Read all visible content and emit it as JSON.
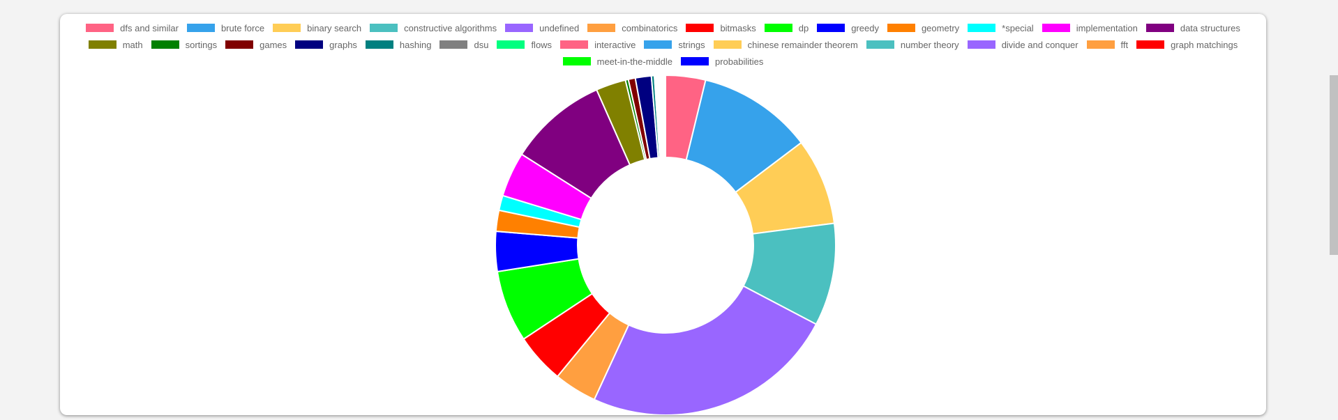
{
  "chart_data": {
    "type": "doughnut",
    "title": "",
    "legend_position": "top",
    "categories": [
      "dfs and similar",
      "brute force",
      "binary search",
      "constructive algorithms",
      "undefined",
      "combinatorics",
      "bitmasks",
      "dp",
      "greedy",
      "geometry",
      "*special",
      "implementation",
      "data structures",
      "math",
      "sortings",
      "games",
      "graphs",
      "hashing",
      "dsu",
      "flows",
      "interactive",
      "strings",
      "chinese remainder theorem",
      "number theory",
      "divide and conquer",
      "fft",
      "graph matchings",
      "meet-in-the-middle",
      "probabilities"
    ],
    "values": [
      4.0,
      11.5,
      8.7,
      10.3,
      25.5,
      4.3,
      5.0,
      7.2,
      4.0,
      2.1,
      1.5,
      4.5,
      9.9,
      3.0,
      0.3,
      0.7,
      1.6,
      0.3,
      0.1,
      0.1,
      0.1,
      0.1,
      0.1,
      0.1,
      0.1,
      0.1,
      0.1,
      0.1,
      0.1
    ],
    "colors": [
      "#ff6384",
      "#36a2eb",
      "#ffcd56",
      "#4bc0c0",
      "#9966ff",
      "#ff9f40",
      "#ff0000",
      "#00ff00",
      "#0000ff",
      "#ff8000",
      "#00ffff",
      "#ff00ff",
      "#800080",
      "#808000",
      "#008000",
      "#800000",
      "#000080",
      "#008080",
      "#808080",
      "#00ff80",
      "#ff6384",
      "#36a2eb",
      "#ffcd56",
      "#4bc0c0",
      "#9966ff",
      "#ff9f40",
      "#ff0000",
      "#00ff00",
      "#0000ff"
    ]
  }
}
